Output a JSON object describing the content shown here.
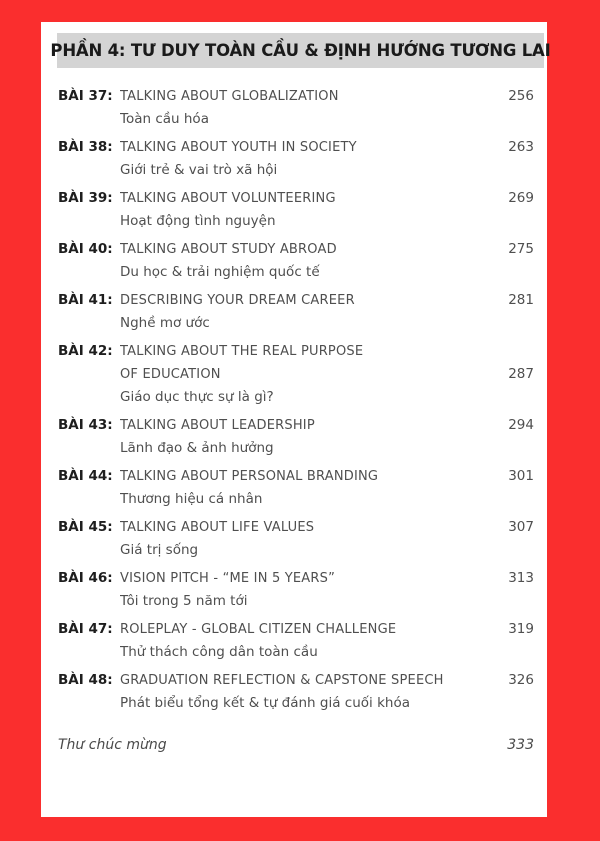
{
  "header": {
    "title": "PHẦN 4: TƯ DUY TOÀN CẦU & ĐỊNH HƯỚNG TƯƠNG LAI"
  },
  "toc": {
    "entries": [
      {
        "label": "BÀI 37:",
        "title_lines": [
          "TALKING ABOUT GLOBALIZATION"
        ],
        "subtitle": "Toàn cầu hóa",
        "page": "256"
      },
      {
        "label": "BÀI 38:",
        "title_lines": [
          "TALKING ABOUT YOUTH IN SOCIETY"
        ],
        "subtitle": "Giới trẻ & vai trò xã hội",
        "page": "263"
      },
      {
        "label": "BÀI 39:",
        "title_lines": [
          "TALKING ABOUT VOLUNTEERING"
        ],
        "subtitle": "Hoạt động tình nguyện",
        "page": "269"
      },
      {
        "label": "BÀI 40:",
        "title_lines": [
          "TALKING ABOUT STUDY ABROAD"
        ],
        "subtitle": "Du học & trải nghiệm quốc tế",
        "page": "275"
      },
      {
        "label": "BÀI 41:",
        "title_lines": [
          "DESCRIBING YOUR DREAM CAREER"
        ],
        "subtitle": "Nghề mơ ước",
        "page": "281"
      },
      {
        "label": "BÀI 42:",
        "title_lines": [
          "TALKING ABOUT THE REAL PURPOSE",
          "OF EDUCATION"
        ],
        "subtitle": "Giáo dục thực sự là gì?",
        "page": "287"
      },
      {
        "label": "BÀI 43:",
        "title_lines": [
          "TALKING ABOUT LEADERSHIP"
        ],
        "subtitle": "Lãnh đạo & ảnh hưởng",
        "page": "294"
      },
      {
        "label": "BÀI 44:",
        "title_lines": [
          "TALKING ABOUT PERSONAL BRANDING"
        ],
        "subtitle": "Thương hiệu cá nhân",
        "page": "301"
      },
      {
        "label": "BÀI 45:",
        "title_lines": [
          "TALKING ABOUT LIFE VALUES"
        ],
        "subtitle": "Giá trị sống",
        "page": "307"
      },
      {
        "label": "BÀI 46:",
        "title_lines": [
          "VISION PITCH - “ME IN 5 YEARS”"
        ],
        "subtitle": "Tôi trong 5 năm tới",
        "page": "313"
      },
      {
        "label": "BÀI 47:",
        "title_lines": [
          "ROLEPLAY - GLOBAL CITIZEN CHALLENGE"
        ],
        "subtitle": "Thử thách công dân toàn cầu",
        "page": "319"
      },
      {
        "label": "BÀI 48:",
        "title_lines": [
          "GRADUATION REFLECTION & CAPSTONE SPEECH"
        ],
        "subtitle": "Phát biểu tổng kết & tự đánh giá cuối khóa",
        "page": "326"
      }
    ]
  },
  "footer": {
    "label": "Thư chúc mừng",
    "page": "333"
  },
  "colors": {
    "background_red": "#FA2E2E",
    "header_gray": "#D4D4D4",
    "label_dark": "#1E1E1E",
    "text_gray": "#4F4F4F"
  }
}
